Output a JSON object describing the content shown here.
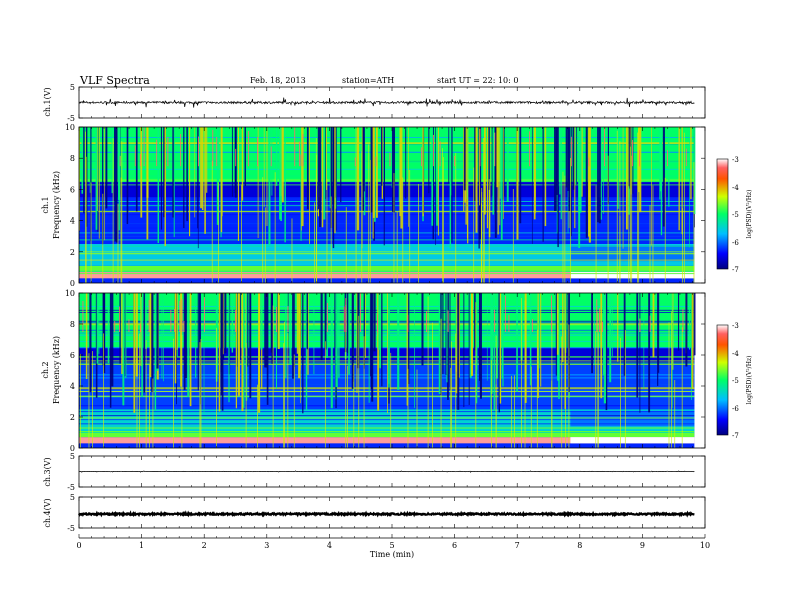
{
  "header": {
    "title": "VLF  Spectra",
    "date": "Feb. 18, 2013",
    "station": "station=ATH",
    "start": "start  UT  =   22: 10: 0"
  },
  "chart_data": [
    {
      "type": "line",
      "panel": "ch1-waveform",
      "ylabel": "ch.1(V)",
      "ylim": [
        -5,
        5
      ],
      "yticks": [
        "5",
        "-5"
      ],
      "baseline": 0.0,
      "noise_amplitude": 0.35
    },
    {
      "type": "heatmap",
      "panel": "ch1-spectrogram",
      "ylabel_top": "ch.1",
      "ylabel": "Frequency  (kHz)",
      "ylim": [
        0,
        10
      ],
      "yticks": [
        "0",
        "2",
        "4",
        "6",
        "8",
        "10"
      ],
      "xlim": [
        0,
        10
      ],
      "data_end_min": 9.83,
      "colorbar": {
        "label": "log(PSD)(V²/Hz)",
        "ticks": [
          "-3",
          "-4",
          "-5",
          "-6",
          "-7"
        ],
        "range": [
          -7,
          -3
        ]
      },
      "bands": [
        {
          "f_from": 0.3,
          "f_to": 0.7,
          "logpsd": -3.2
        },
        {
          "f_from": 0.7,
          "f_to": 1.1,
          "logpsd": -4.7
        },
        {
          "f_from": 1.1,
          "f_to": 2.5,
          "logpsd": -5.6
        },
        {
          "f_from": 2.5,
          "f_to": 5.5,
          "logpsd": -6.3
        },
        {
          "f_from": 5.5,
          "f_to": 6.5,
          "logpsd": -6.6
        },
        {
          "f_from": 6.5,
          "f_to": 10.0,
          "logpsd": -5.0
        }
      ],
      "change_at_min": 7.85
    },
    {
      "type": "heatmap",
      "panel": "ch2-spectrogram",
      "ylabel_top": "ch.2",
      "ylabel": "Frequency  (kHz)",
      "ylim": [
        0,
        10
      ],
      "yticks": [
        "0",
        "2",
        "4",
        "6",
        "8",
        "10"
      ],
      "xlim": [
        0,
        10
      ],
      "data_end_min": 9.83,
      "colorbar": {
        "label": "log(PSD)(V²/Hz)",
        "ticks": [
          "-3",
          "-4",
          "-5",
          "-6",
          "-7"
        ],
        "range": [
          -7,
          -3
        ]
      },
      "bands": [
        {
          "f_from": 0.3,
          "f_to": 0.7,
          "logpsd": -3.2
        },
        {
          "f_from": 0.7,
          "f_to": 1.1,
          "logpsd": -4.7
        },
        {
          "f_from": 1.1,
          "f_to": 2.5,
          "logpsd": -5.5
        },
        {
          "f_from": 2.5,
          "f_to": 5.5,
          "logpsd": -6.2
        },
        {
          "f_from": 5.5,
          "f_to": 6.5,
          "logpsd": -6.6
        },
        {
          "f_from": 6.5,
          "f_to": 10.0,
          "logpsd": -5.0
        }
      ],
      "change_at_min": 7.85
    },
    {
      "type": "line",
      "panel": "ch3-waveform",
      "ylabel": "ch.3(V)",
      "ylim": [
        -5,
        5
      ],
      "yticks": [
        "5",
        "-5"
      ],
      "baseline": 0.0,
      "noise_amplitude": 0.05
    },
    {
      "type": "line",
      "panel": "ch4-waveform",
      "ylabel": "ch.4(V)",
      "ylim": [
        -5,
        5
      ],
      "yticks": [
        "5",
        "-5"
      ],
      "baseline": -0.5,
      "noise_amplitude": 0.25
    }
  ],
  "xaxis": {
    "label": "Time  (min)",
    "ticks": [
      "0",
      "1",
      "2",
      "3",
      "4",
      "5",
      "6",
      "7",
      "8",
      "9",
      "10"
    ],
    "range": [
      0,
      10
    ]
  }
}
